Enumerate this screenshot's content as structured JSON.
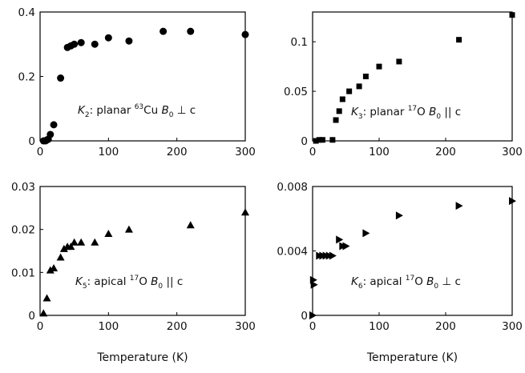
{
  "chart_data": [
    {
      "type": "scatter",
      "marker": "circle",
      "annotation": {
        "sym": "K",
        "sub": "2",
        "text": ": planar ",
        "iso": "63",
        "nucleus": "Cu",
        "field": "B",
        "field_sub": "0",
        "relation": "⊥ c"
      },
      "xlabel": "",
      "xlim": [
        0,
        300
      ],
      "ylim": [
        0,
        0.4
      ],
      "xticks": [
        "0",
        "100",
        "200",
        "300"
      ],
      "yticks": [
        "0",
        "0.2",
        "0.4"
      ],
      "x": [
        5,
        8,
        10,
        12,
        15,
        20,
        30,
        40,
        45,
        50,
        60,
        80,
        100,
        130,
        180,
        220,
        300
      ],
      "y": [
        0,
        0,
        0.003,
        0.005,
        0.02,
        0.05,
        0.195,
        0.29,
        0.295,
        0.3,
        0.305,
        0.3,
        0.32,
        0.31,
        0.34,
        0.34,
        0.33
      ]
    },
    {
      "type": "scatter",
      "marker": "square",
      "annotation": {
        "sym": "K",
        "sub": "3",
        "text": ": planar ",
        "iso": "17",
        "nucleus": "O",
        "field": "B",
        "field_sub": "0",
        "relation": "|| c"
      },
      "xlabel": "",
      "xlim": [
        0,
        300
      ],
      "ylim": [
        0,
        0.13
      ],
      "xticks": [
        "0",
        "100",
        "200",
        "300"
      ],
      "yticks": [
        "0",
        "0.05",
        "0.1"
      ],
      "x": [
        5,
        10,
        15,
        30,
        35,
        40,
        45,
        55,
        70,
        80,
        100,
        130,
        220,
        300
      ],
      "y": [
        0,
        0.001,
        0.001,
        0.001,
        0.021,
        0.03,
        0.042,
        0.05,
        0.055,
        0.065,
        0.075,
        0.08,
        0.102,
        0.127
      ]
    },
    {
      "type": "scatter",
      "marker": "triangle-up",
      "annotation": {
        "sym": "K",
        "sub": "5",
        "text": ": apical ",
        "iso": "17",
        "nucleus": "O",
        "field": "B",
        "field_sub": "0",
        "relation": "|| c"
      },
      "xlabel": "Temperature (K)",
      "xlim": [
        0,
        300
      ],
      "ylim": [
        0,
        0.03
      ],
      "xticks": [
        "0",
        "100",
        "200",
        "300"
      ],
      "yticks": [
        "0",
        "0.01",
        "0.02",
        "0.03"
      ],
      "x": [
        5,
        10,
        15,
        20,
        30,
        35,
        40,
        45,
        50,
        60,
        80,
        100,
        130,
        220,
        300
      ],
      "y": [
        0.0005,
        0.004,
        0.0105,
        0.011,
        0.0135,
        0.0155,
        0.016,
        0.016,
        0.017,
        0.017,
        0.017,
        0.019,
        0.02,
        0.021,
        0.024
      ]
    },
    {
      "type": "scatter",
      "marker": "triangle-right",
      "annotation": {
        "sym": "K",
        "sub": "6",
        "text": ": apical ",
        "iso": "17",
        "nucleus": "O",
        "field": "B",
        "field_sub": "0",
        "relation": "⊥ c"
      },
      "xlabel": "Temperature (K)",
      "xlim": [
        0,
        300
      ],
      "ylim": [
        0,
        0.008
      ],
      "xticks": [
        "0",
        "100",
        "200",
        "300"
      ],
      "yticks": [
        "0",
        "0.004",
        "0.008"
      ],
      "x": [
        0,
        0,
        1,
        2,
        10,
        15,
        20,
        25,
        30,
        40,
        45,
        50,
        80,
        130,
        220,
        300
      ],
      "y": [
        0,
        0,
        0.0022,
        0.0019,
        0.0037,
        0.0037,
        0.0037,
        0.0037,
        0.0037,
        0.0047,
        0.0043,
        0.0043,
        0.0051,
        0.0062,
        0.0068,
        0.0071
      ]
    }
  ]
}
